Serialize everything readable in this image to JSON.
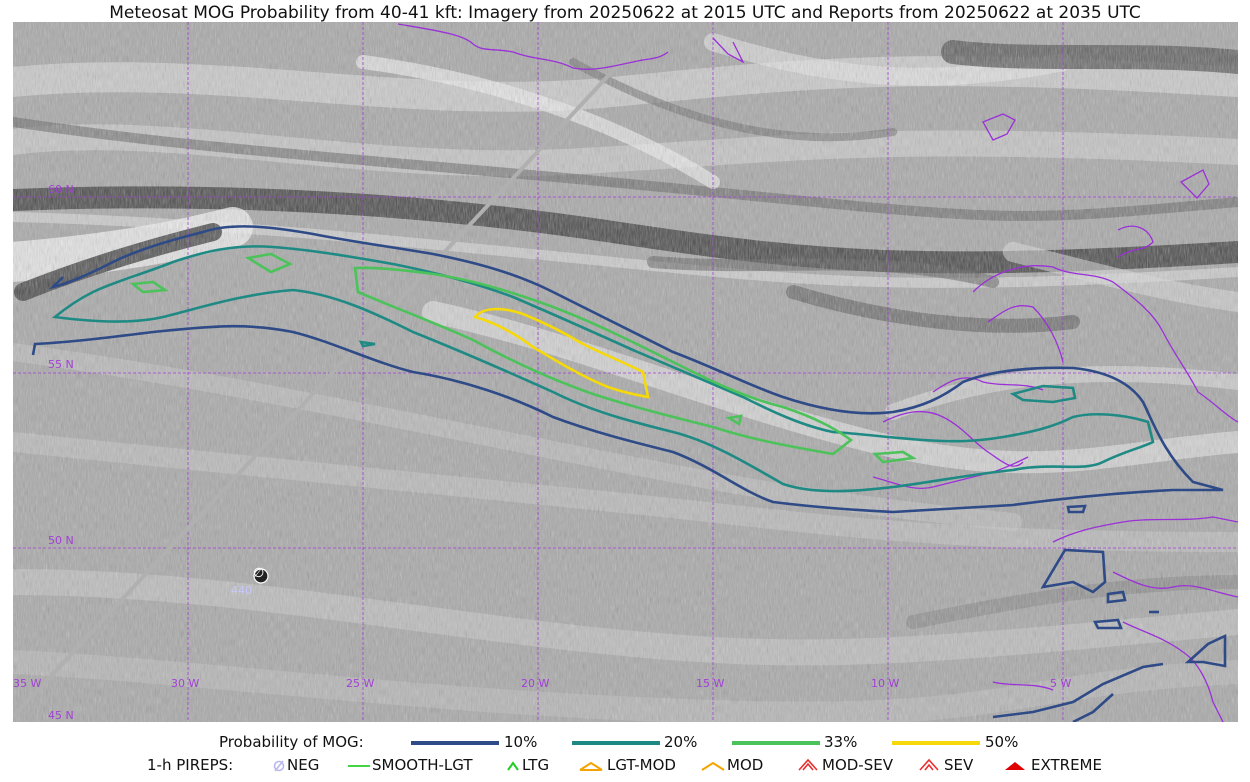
{
  "title": "Meteosat MOG Probability from 40-41 kft: Imagery from 20250622 at 2015 UTC and Reports from 20250622 at 2035 UTC",
  "grid": {
    "lat_labels": [
      "60 N",
      "55 N",
      "50 N",
      "45 N"
    ],
    "lon_labels": [
      "35 W",
      "30 W",
      "25 W",
      "20 W",
      "15 W",
      "10 W",
      "5 W"
    ],
    "color": "#a23fd6"
  },
  "pirep_marker": {
    "symbol": "∅",
    "label": "440"
  },
  "legend": {
    "probability_title": "Probability of MOG:",
    "probability_items": [
      {
        "label": "10%",
        "color": "#2e4a87"
      },
      {
        "label": "20%",
        "color": "#1f8a84"
      },
      {
        "label": "33%",
        "color": "#4cc25a"
      },
      {
        "label": "50%",
        "color": "#f5d90a"
      }
    ],
    "pirep_title": "1-h PIREPS:",
    "pirep_items": [
      {
        "label": "NEG",
        "icon": "neg-icon",
        "color": "#b9b9f0"
      },
      {
        "label": "SMOOTH-LGT",
        "icon": "smooth-lgt-line-icon",
        "color": "#44d444"
      },
      {
        "label": "LTG",
        "icon": "ltg-chevron-icon",
        "color": "#22cc22"
      },
      {
        "label": "LGT-MOD",
        "icon": "lgt-mod-chevron-icon",
        "color": "#f5a300"
      },
      {
        "label": "MOD",
        "icon": "mod-chevron-icon",
        "color": "#f5a300"
      },
      {
        "label": "MOD-SEV",
        "icon": "mod-sev-chevron-icon",
        "color": "#e83030"
      },
      {
        "label": "SEV",
        "icon": "sev-chevron-icon",
        "color": "#e83030"
      },
      {
        "label": "EXTREME",
        "icon": "extreme-chevron-icon",
        "color": "#e00000"
      }
    ]
  },
  "colors": {
    "coastline": "#9b30d9",
    "flight_track": "#b0b0b0",
    "contour_10": "#2e4a87",
    "contour_20": "#1f8a84",
    "contour_33": "#4cc25a",
    "contour_50": "#f5d90a"
  }
}
